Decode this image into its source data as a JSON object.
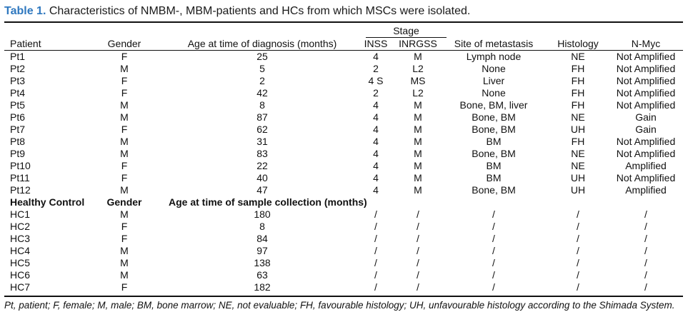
{
  "caption": {
    "label": "Table 1.",
    "text": "Characteristics of NMBM-, MBM-patients and HCs from which MSCs were isolated."
  },
  "stage_title": "Stage",
  "headers": [
    "Patient",
    "Gender",
    "Age at time of diagnosis (months)",
    "INSS",
    "INRGSS",
    "Site of metastasis",
    "Histology",
    "N-Myc"
  ],
  "patients": [
    [
      "Pt1",
      "F",
      "25",
      "4",
      "M",
      "Lymph node",
      "NE",
      "Not Amplified"
    ],
    [
      "Pt2",
      "M",
      "5",
      "2",
      "L2",
      "None",
      "FH",
      "Not Amplified"
    ],
    [
      "Pt3",
      "F",
      "2",
      "4 S",
      "MS",
      "Liver",
      "FH",
      "Not Amplified"
    ],
    [
      "Pt4",
      "F",
      "42",
      "2",
      "L2",
      "None",
      "FH",
      "Not Amplified"
    ],
    [
      "Pt5",
      "M",
      "8",
      "4",
      "M",
      "Bone, BM, liver",
      "FH",
      "Not Amplified"
    ],
    [
      "Pt6",
      "M",
      "87",
      "4",
      "M",
      "Bone, BM",
      "NE",
      "Gain"
    ],
    [
      "Pt7",
      "F",
      "62",
      "4",
      "M",
      "Bone, BM",
      "UH",
      "Gain"
    ],
    [
      "Pt8",
      "M",
      "31",
      "4",
      "M",
      "BM",
      "FH",
      "Not Amplified"
    ],
    [
      "Pt9",
      "M",
      "83",
      "4",
      "M",
      "Bone, BM",
      "NE",
      "Not Amplified"
    ],
    [
      "Pt10",
      "F",
      "22",
      "4",
      "M",
      "BM",
      "NE",
      "Amplified"
    ],
    [
      "Pt11",
      "F",
      "40",
      "4",
      "M",
      "BM",
      "UH",
      "Not Amplified"
    ],
    [
      "Pt12",
      "M",
      "47",
      "4",
      "M",
      "Bone, BM",
      "UH",
      "Amplified"
    ]
  ],
  "control_headers": [
    "Healthy Control",
    "Gender",
    "Age at time of sample collection (months)"
  ],
  "controls": [
    [
      "HC1",
      "M",
      "180",
      "/",
      "/",
      "/",
      "/",
      "/"
    ],
    [
      "HC2",
      "F",
      "8",
      "/",
      "/",
      "/",
      "/",
      "/"
    ],
    [
      "HC3",
      "F",
      "84",
      "/",
      "/",
      "/",
      "/",
      "/"
    ],
    [
      "HC4",
      "M",
      "97",
      "/",
      "/",
      "/",
      "/",
      "/"
    ],
    [
      "HC5",
      "M",
      "138",
      "/",
      "/",
      "/",
      "/",
      "/"
    ],
    [
      "HC6",
      "M",
      "63",
      "/",
      "/",
      "/",
      "/",
      "/"
    ],
    [
      "HC7",
      "F",
      "182",
      "/",
      "/",
      "/",
      "/",
      "/"
    ]
  ],
  "footnote": "Pt, patient; F, female; M, male; BM, bone marrow; NE, not evaluable; FH, favourable histology; UH, unfavourable histology according to the Shimada System."
}
